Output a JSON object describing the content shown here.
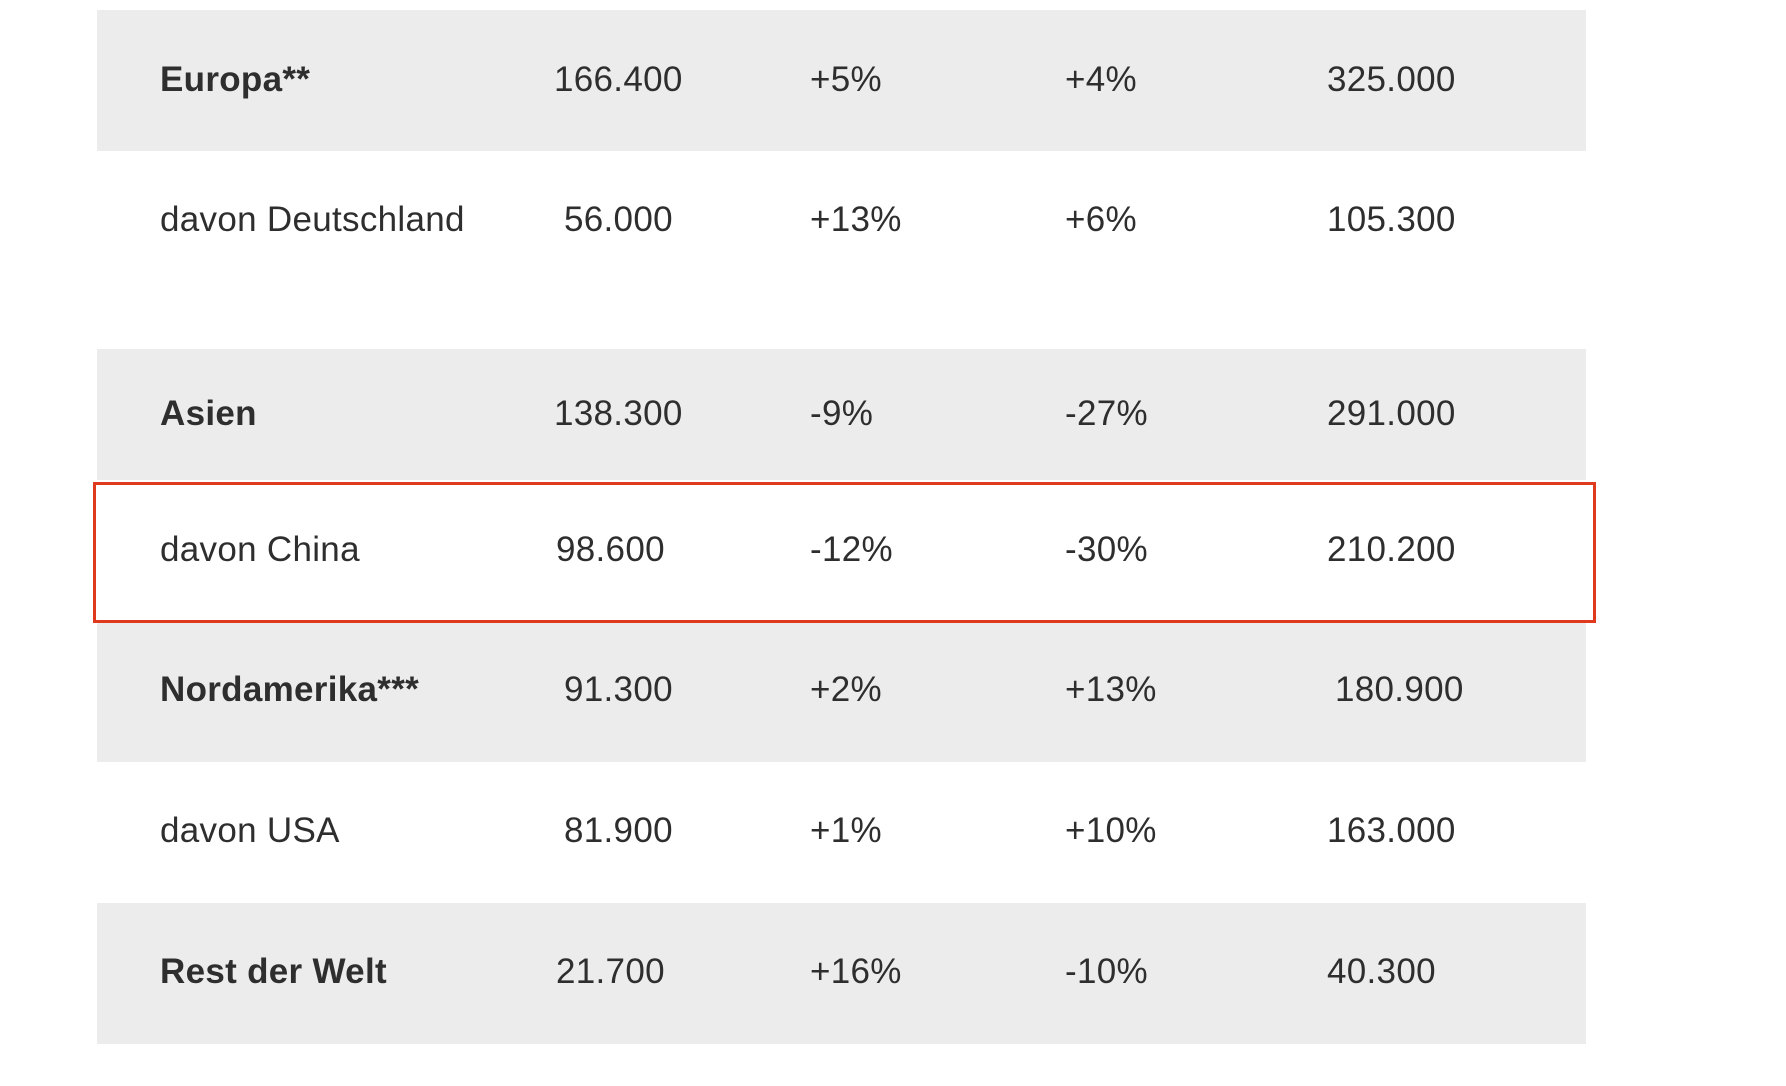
{
  "table": {
    "rows": [
      {
        "region": "Europa**",
        "bold": true,
        "c1": "166.400",
        "c2": "+5%",
        "c3": "+4%",
        "c4": "325.000"
      },
      {
        "region": "davon Deutschland",
        "bold": false,
        "c1": "56.000",
        "c2": "+13%",
        "c3": "+6%",
        "c4": "105.300"
      },
      {
        "region": "Asien",
        "bold": true,
        "c1": "138.300",
        "c2": "-9%",
        "c3": "-27%",
        "c4": "291.000"
      },
      {
        "region": "davon China",
        "bold": false,
        "c1": "98.600",
        "c2": "-12%",
        "c3": "-30%",
        "c4": "210.200"
      },
      {
        "region": "Nordamerika***",
        "bold": true,
        "c1": "91.300",
        "c2": "+2%",
        "c3": "+13%",
        "c4": "180.900"
      },
      {
        "region": "davon USA",
        "bold": false,
        "c1": "81.900",
        "c2": "+1%",
        "c3": "+10%",
        "c4": "163.000"
      },
      {
        "region": "Rest der Welt",
        "bold": true,
        "c1": "21.700",
        "c2": "+16%",
        "c3": "-10%",
        "c4": "40.300"
      }
    ],
    "highlighted_row": "davon China"
  },
  "colors": {
    "shaded_row": "#ececec",
    "text": "#2e2e2e",
    "highlight_border": "#e03a1e"
  }
}
